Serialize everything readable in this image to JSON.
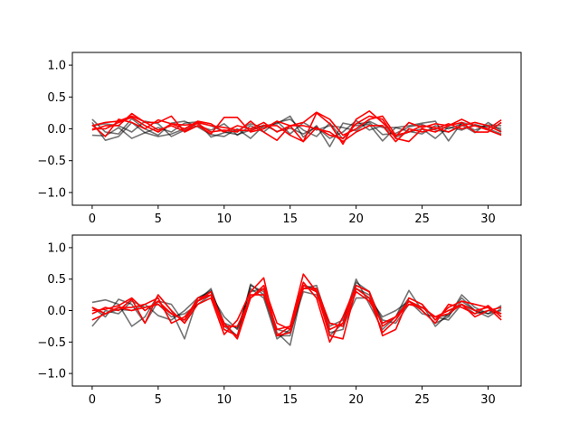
{
  "chart_data": [
    {
      "type": "line",
      "x": [
        0,
        1,
        2,
        3,
        4,
        5,
        6,
        7,
        8,
        9,
        10,
        11,
        12,
        13,
        14,
        15,
        16,
        17,
        18,
        19,
        20,
        21,
        22,
        23,
        24,
        25,
        26,
        27,
        28,
        29,
        30,
        31
      ],
      "xlim": [
        -1.5,
        32.5
      ],
      "ylim": [
        -1.2,
        1.2
      ],
      "xticks": [
        0,
        5,
        10,
        15,
        20,
        25,
        30
      ],
      "yticks": [
        -1.0,
        -0.5,
        0.0,
        0.5,
        1.0
      ],
      "xticklabels": [
        "0",
        "5",
        "10",
        "15",
        "20",
        "25",
        "30"
      ],
      "yticklabels": [
        "−1.0",
        "−0.5",
        "0.0",
        "0.5",
        "1.0"
      ],
      "grid": false,
      "colors": {
        "reference": "#000000",
        "predicted": "#ff0000"
      },
      "series": [
        {
          "group": "reference",
          "values": [
            0.15,
            -0.05,
            -0.08,
            0.16,
            0.0,
            -0.1,
            0.09,
            0.12,
            0.03,
            -0.09,
            -0.12,
            0.0,
            -0.15,
            0.05,
            0.08,
            0.2,
            -0.13,
            0.05,
            -0.28,
            0.09,
            0.05,
            0.07,
            -0.19,
            0.02,
            0.05,
            0.09,
            0.12,
            -0.19,
            0.1,
            0.05,
            0.03,
            0.01
          ]
        },
        {
          "group": "reference",
          "values": [
            0.1,
            -0.18,
            -0.12,
            0.1,
            -0.06,
            0.02,
            -0.05,
            0.09,
            0.11,
            -0.13,
            -0.06,
            -0.03,
            0.08,
            0.02,
            0.1,
            0.15,
            -0.02,
            -0.12,
            0.09,
            -0.16,
            0.08,
            0.1,
            -0.09,
            -0.07,
            0.03,
            0.07,
            -0.02,
            -0.05,
            0.06,
            -0.06,
            0.1,
            -0.03
          ]
        },
        {
          "group": "reference",
          "values": [
            -0.1,
            -0.11,
            0.02,
            -0.15,
            -0.06,
            -0.12,
            -0.08,
            0.0,
            0.1,
            0.05,
            -0.05,
            -0.09,
            -0.02,
            0.06,
            -0.04,
            0.01,
            -0.08,
            0.03,
            -0.15,
            -0.05,
            0.13,
            -0.02,
            0.05,
            -0.13,
            -0.05,
            0.0,
            -0.15,
            0.03,
            -0.02,
            0.07,
            0.0,
            -0.08
          ]
        },
        {
          "group": "reference",
          "values": [
            0.05,
            0.08,
            0.05,
            -0.05,
            0.12,
            0.08,
            -0.12,
            -0.02,
            0.05,
            -0.02,
            0.08,
            -0.1,
            0.05,
            -0.05,
            0.12,
            -0.08,
            0.1,
            -0.02,
            0.05,
            0.02,
            -0.03,
            0.12,
            0.02,
            0.02,
            -0.04,
            -0.08,
            0.05,
            0.0,
            0.08,
            -0.02,
            0.06,
            0.05
          ]
        },
        {
          "group": "predicted",
          "values": [
            0.05,
            0.1,
            0.12,
            0.2,
            0.11,
            -0.02,
            0.05,
            -0.04,
            0.1,
            0.05,
            0.02,
            -0.02,
            -0.03,
            0.05,
            0.05,
            -0.1,
            -0.2,
            0.25,
            0.08,
            -0.24,
            0.15,
            0.28,
            0.1,
            -0.12,
            0.1,
            0.02,
            0.08,
            0.05,
            0.15,
            0.05,
            0.0,
            0.14
          ]
        },
        {
          "group": "predicted",
          "values": [
            -0.02,
            0.05,
            0.05,
            0.24,
            0.1,
            0.1,
            0.2,
            -0.05,
            0.05,
            -0.08,
            0.18,
            0.18,
            -0.05,
            0.0,
            0.12,
            0.05,
            -0.2,
            0.02,
            -0.1,
            -0.15,
            0.08,
            0.2,
            0.15,
            -0.15,
            -0.2,
            0.0,
            -0.05,
            0.05,
            0.1,
            -0.05,
            -0.05,
            0.1
          ]
        },
        {
          "group": "predicted",
          "values": [
            0.06,
            -0.12,
            0.15,
            0.1,
            0.0,
            0.14,
            0.08,
            0.06,
            0.08,
            -0.05,
            -0.02,
            -0.05,
            0.12,
            -0.05,
            -0.18,
            0.05,
            0.1,
            0.26,
            0.15,
            -0.1,
            0.0,
            0.15,
            0.2,
            -0.1,
            -0.05,
            0.05,
            0.02,
            -0.05,
            0.05,
            0.1,
            0.05,
            -0.05
          ]
        },
        {
          "group": "predicted",
          "values": [
            0.0,
            0.0,
            0.1,
            0.18,
            0.05,
            -0.05,
            0.08,
            0.0,
            0.12,
            0.08,
            -0.05,
            0.05,
            0.0,
            0.1,
            -0.05,
            0.05,
            0.05,
            0.0,
            -0.05,
            -0.2,
            -0.05,
            0.05,
            0.05,
            -0.2,
            0.0,
            -0.05,
            0.0,
            0.08,
            0.0,
            0.05,
            -0.02,
            -0.1
          ]
        }
      ]
    },
    {
      "type": "line",
      "x": [
        0,
        1,
        2,
        3,
        4,
        5,
        6,
        7,
        8,
        9,
        10,
        11,
        12,
        13,
        14,
        15,
        16,
        17,
        18,
        19,
        20,
        21,
        22,
        23,
        24,
        25,
        26,
        27,
        28,
        29,
        30,
        31
      ],
      "xlim": [
        -1.5,
        32.5
      ],
      "ylim": [
        -1.2,
        1.2
      ],
      "xticks": [
        0,
        5,
        10,
        15,
        20,
        25,
        30
      ],
      "yticks": [
        -1.0,
        -0.5,
        0.0,
        0.5,
        1.0
      ],
      "xticklabels": [
        "0",
        "5",
        "10",
        "15",
        "20",
        "25",
        "30"
      ],
      "yticklabels": [
        "−1.0",
        "−0.5",
        "0.0",
        "0.5",
        "1.0"
      ],
      "grid": false,
      "colors": {
        "reference": "#000000",
        "predicted": "#ff0000"
      },
      "series": [
        {
          "group": "reference",
          "values": [
            0.13,
            0.17,
            0.1,
            -0.25,
            -0.1,
            0.25,
            0.0,
            -0.45,
            0.2,
            0.3,
            -0.2,
            -0.42,
            0.4,
            0.3,
            -0.35,
            -0.55,
            0.4,
            0.35,
            -0.4,
            -0.2,
            0.5,
            0.1,
            -0.3,
            -0.1,
            0.32,
            0.0,
            -0.2,
            -0.1,
            0.25,
            0.05,
            -0.05,
            0.08
          ]
        },
        {
          "group": "reference",
          "values": [
            0.05,
            -0.1,
            0.18,
            0.1,
            -0.2,
            0.15,
            0.1,
            -0.2,
            0.15,
            0.35,
            -0.25,
            -0.4,
            0.42,
            0.25,
            -0.4,
            -0.4,
            0.4,
            0.3,
            -0.35,
            -0.3,
            0.45,
            0.3,
            -0.2,
            -0.1,
            0.2,
            0.1,
            -0.25,
            -0.05,
            0.2,
            0.0,
            -0.1,
            0.03
          ]
        },
        {
          "group": "reference",
          "values": [
            -0.25,
            0.0,
            -0.05,
            0.15,
            0.05,
            0.1,
            -0.1,
            -0.05,
            0.1,
            0.25,
            -0.1,
            -0.3,
            0.35,
            0.2,
            -0.45,
            -0.3,
            0.35,
            0.4,
            -0.25,
            -0.15,
            0.35,
            0.25,
            -0.15,
            -0.2,
            0.1,
            0.05,
            -0.1,
            -0.15,
            0.1,
            -0.05,
            0.0,
            -0.05
          ]
        },
        {
          "group": "reference",
          "values": [
            0.05,
            -0.05,
            0.02,
            0.0,
            0.1,
            -0.08,
            -0.15,
            0.0,
            0.2,
            0.32,
            -0.2,
            -0.28,
            0.3,
            0.35,
            -0.3,
            -0.35,
            0.3,
            0.25,
            -0.2,
            -0.25,
            0.2,
            0.2,
            -0.1,
            0.0,
            0.15,
            -0.05,
            -0.1,
            -0.08,
            0.15,
            0.0,
            -0.05,
            0.0
          ]
        },
        {
          "group": "predicted",
          "values": [
            -0.05,
            0.05,
            0.0,
            0.18,
            -0.2,
            0.25,
            0.0,
            -0.2,
            0.1,
            0.2,
            -0.38,
            -0.15,
            0.3,
            0.52,
            -0.4,
            -0.25,
            0.45,
            0.2,
            -0.5,
            -0.1,
            0.4,
            0.3,
            -0.4,
            -0.3,
            0.2,
            0.1,
            -0.15,
            0.05,
            0.15,
            0.1,
            0.05,
            -0.15
          ]
        },
        {
          "group": "predicted",
          "values": [
            -0.15,
            -0.05,
            0.05,
            0.05,
            0.1,
            0.2,
            -0.2,
            -0.1,
            0.15,
            0.25,
            -0.3,
            -0.4,
            0.25,
            0.25,
            -0.3,
            -0.25,
            0.58,
            0.3,
            -0.4,
            -0.45,
            0.35,
            0.2,
            -0.35,
            -0.15,
            0.15,
            0.0,
            -0.2,
            0.1,
            0.05,
            -0.05,
            0.08,
            -0.1
          ]
        },
        {
          "group": "predicted",
          "values": [
            0.0,
            0.02,
            0.08,
            0.2,
            0.0,
            0.15,
            -0.05,
            -0.15,
            0.2,
            0.25,
            -0.2,
            -0.45,
            0.2,
            0.4,
            -0.2,
            -0.3,
            0.35,
            0.35,
            -0.2,
            -0.25,
            0.3,
            0.15,
            -0.2,
            -0.1,
            0.1,
            0.05,
            -0.1,
            -0.05,
            0.1,
            -0.1,
            0.0,
            0.05
          ]
        },
        {
          "group": "predicted",
          "values": [
            0.05,
            -0.05,
            0.05,
            0.0,
            0.05,
            0.1,
            -0.05,
            -0.15,
            0.15,
            0.3,
            -0.25,
            -0.25,
            0.2,
            0.35,
            -0.4,
            -0.35,
            0.4,
            0.3,
            -0.3,
            -0.2,
            0.4,
            0.3,
            -0.25,
            -0.1,
            0.15,
            0.05,
            -0.1,
            0.0,
            0.1,
            0.0,
            0.05,
            -0.05
          ]
        }
      ]
    }
  ]
}
